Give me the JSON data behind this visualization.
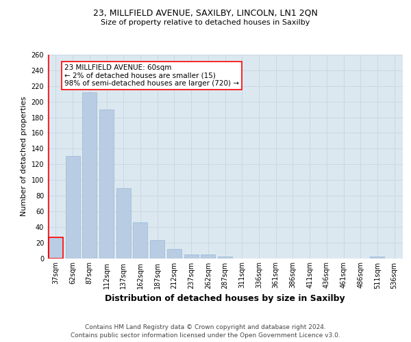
{
  "title": "23, MILLFIELD AVENUE, SAXILBY, LINCOLN, LN1 2QN",
  "subtitle": "Size of property relative to detached houses in Saxilby",
  "xlabel": "Distribution of detached houses by size in Saxilby",
  "ylabel": "Number of detached properties",
  "categories": [
    "37sqm",
    "62sqm",
    "87sqm",
    "112sqm",
    "137sqm",
    "162sqm",
    "187sqm",
    "212sqm",
    "237sqm",
    "262sqm",
    "287sqm",
    "311sqm",
    "336sqm",
    "361sqm",
    "386sqm",
    "411sqm",
    "436sqm",
    "461sqm",
    "486sqm",
    "511sqm",
    "536sqm"
  ],
  "values": [
    27,
    131,
    212,
    190,
    90,
    46,
    23,
    12,
    5,
    5,
    2,
    0,
    0,
    0,
    0,
    0,
    0,
    0,
    0,
    2,
    0
  ],
  "bar_color": "#b8cce4",
  "bar_edge_color": "#9ab8d4",
  "highlight_bar_edge_color": "red",
  "annotation_box_text": "23 MILLFIELD AVENUE: 60sqm\n← 2% of detached houses are smaller (15)\n98% of semi-detached houses are larger (720) →",
  "annotation_box_facecolor": "#ffffff",
  "annotation_box_edgecolor": "red",
  "ylim": [
    0,
    260
  ],
  "yticks": [
    0,
    20,
    40,
    60,
    80,
    100,
    120,
    140,
    160,
    180,
    200,
    220,
    240,
    260
  ],
  "grid_color": "#c8d4e0",
  "background_color": "#dce8f0",
  "title_fontsize": 9,
  "subtitle_fontsize": 8,
  "xlabel_fontsize": 9,
  "ylabel_fontsize": 8,
  "tick_fontsize": 7,
  "annotation_fontsize": 7.5,
  "footer_fontsize": 6.5,
  "footer_text": "Contains HM Land Registry data © Crown copyright and database right 2024.\nContains public sector information licensed under the Open Government Licence v3.0."
}
